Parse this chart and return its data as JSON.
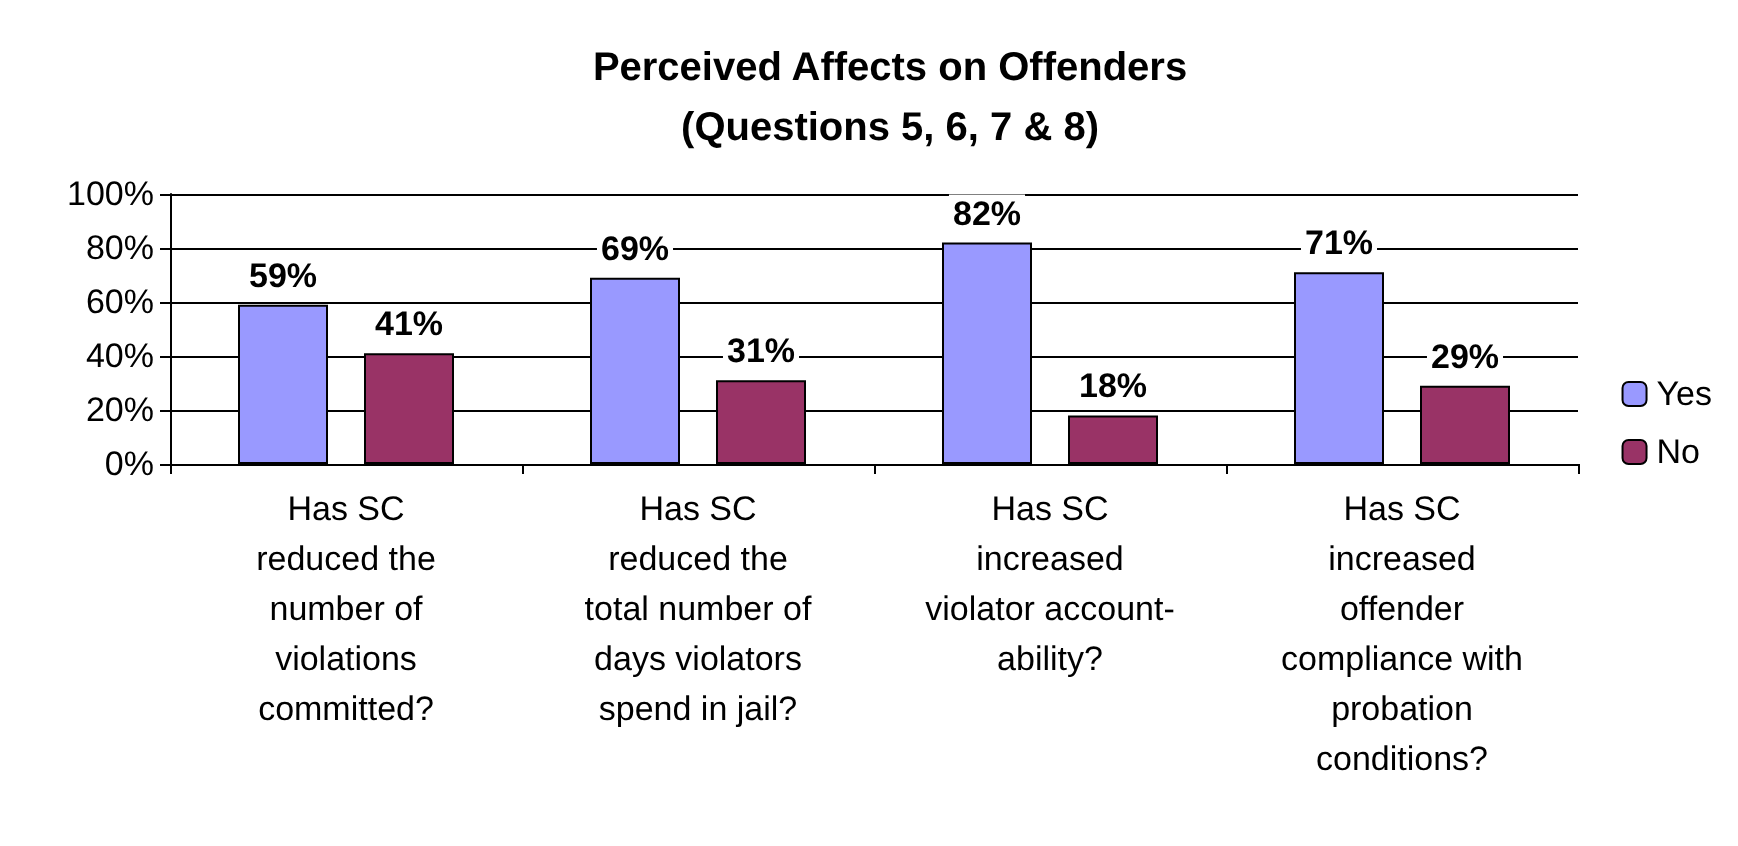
{
  "chart_data": {
    "type": "bar",
    "title": "Perceived Affects on Offenders\n(Questions 5, 6, 7 & 8)",
    "categories": [
      "Has SC\nreduced the\nnumber of\nviolations\ncommitted?",
      "Has SC\nreduced the\ntotal number of\ndays violators\nspend in jail?",
      "Has SC\nincreased\nviolator account-\nability?",
      "Has SC\nincreased\noffender\ncompliance with\nprobation\nconditions?"
    ],
    "series": [
      {
        "name": "Yes",
        "color": "#9999ff",
        "values": [
          59,
          69,
          82,
          71
        ],
        "value_labels": [
          "59%",
          "69%",
          "82%",
          "71%"
        ]
      },
      {
        "name": "No",
        "color": "#993366",
        "values": [
          41,
          31,
          18,
          29
        ],
        "value_labels": [
          "41%",
          "31%",
          "18%",
          "29%"
        ]
      }
    ],
    "ylim": [
      0,
      100
    ],
    "yticks": [
      {
        "value": 0,
        "label": "0%"
      },
      {
        "value": 20,
        "label": "20%"
      },
      {
        "value": 40,
        "label": "40%"
      },
      {
        "value": 60,
        "label": "60%"
      },
      {
        "value": 80,
        "label": "80%"
      },
      {
        "value": 100,
        "label": "100%"
      }
    ],
    "grid": "y",
    "legend": "right"
  }
}
